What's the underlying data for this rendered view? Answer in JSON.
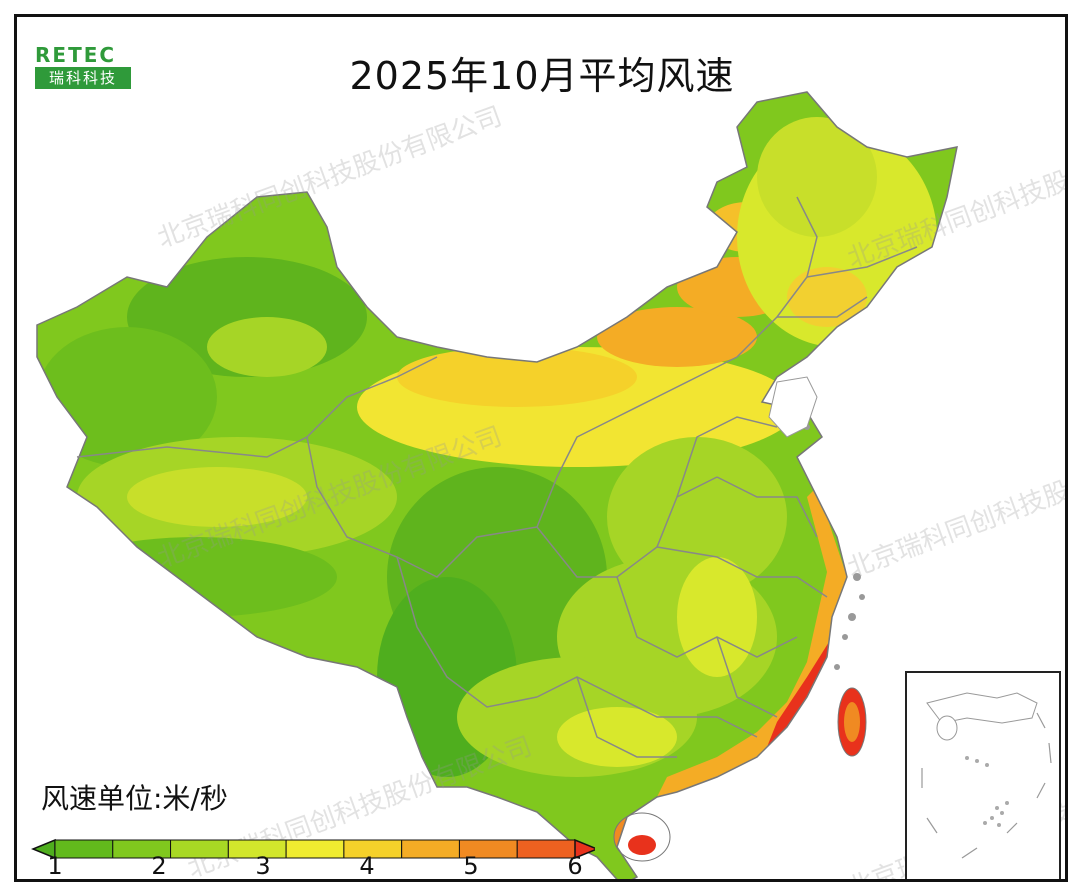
{
  "title": "2025年10月平均风速",
  "logo": {
    "top": "RETEC",
    "bottom": "瑞科科技"
  },
  "watermark": "北京瑞科同创科技股份有限公司",
  "legend": {
    "unit_label": "风速单位:米/秒",
    "ticks": [
      "1",
      "2",
      "3",
      "4",
      "5",
      "6"
    ],
    "colors": [
      "#4fae1e",
      "#62ba1c",
      "#80c81e",
      "#a8d824",
      "#d2e62c",
      "#f0ec30",
      "#f5d12a",
      "#f4ac25",
      "#f08a22",
      "#ee6120",
      "#e8321c"
    ]
  },
  "palette": {
    "region_very_low": "#4fae1e",
    "region_low": "#6dbe1d",
    "region_mid": "#a6d526",
    "region_midhigh": "#d8e82c",
    "region_high": "#f2e532",
    "region_orange": "#f4ac25",
    "region_red": "#e8321c",
    "border_gray": "#888888"
  }
}
